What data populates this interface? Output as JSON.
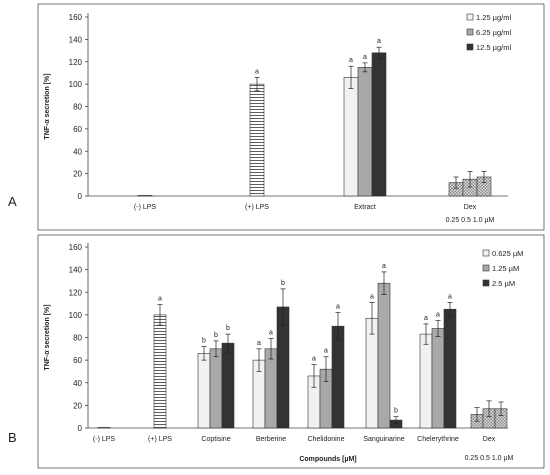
{
  "chart_data": [
    {
      "type": "bar",
      "panel_label": "A",
      "ylabel": "TNF-α secretion [%]",
      "xlabel": "",
      "ylim": [
        0,
        160
      ],
      "yticks": [
        0,
        20,
        40,
        60,
        80,
        100,
        120,
        140,
        160
      ],
      "categories": [
        "(-) LPS",
        "(+) LPS",
        "Extract",
        "Dex"
      ],
      "sub_labels": {
        "Dex": "0.25  0.5  1.0 µM"
      },
      "legend": {
        "position": "top-right",
        "entries": [
          "1.25 µg/ml",
          "6.25 µg/ml",
          "12.5 µg/ml"
        ]
      },
      "groups": [
        {
          "category": "(-) LPS",
          "bars": [
            {
              "style": "control",
              "value": 0.5,
              "error": 0,
              "label": ""
            }
          ]
        },
        {
          "category": "(+) LPS",
          "bars": [
            {
              "style": "hatch",
              "value": 100,
              "error": 6,
              "label": "a"
            }
          ]
        },
        {
          "category": "Extract",
          "bars": [
            {
              "style": "light",
              "value": 106,
              "error": 10,
              "label": "a"
            },
            {
              "style": "mid",
              "value": 115,
              "error": 4,
              "label": "a"
            },
            {
              "style": "dark",
              "value": 128,
              "error": 5,
              "label": "a"
            }
          ]
        },
        {
          "category": "Dex",
          "bars": [
            {
              "style": "dots",
              "value": 12,
              "error": 5,
              "label": ""
            },
            {
              "style": "dots",
              "value": 15,
              "error": 7,
              "label": ""
            },
            {
              "style": "dots",
              "value": 17,
              "error": 5,
              "label": ""
            }
          ]
        }
      ]
    },
    {
      "type": "bar",
      "panel_label": "B",
      "ylabel": "TNF-α secretion [%]",
      "xlabel": "Compounds [µM]",
      "ylim": [
        0,
        160
      ],
      "yticks": [
        0,
        20,
        40,
        60,
        80,
        100,
        120,
        140,
        160
      ],
      "categories": [
        "(-) LPS",
        "(+) LPS",
        "Coptisine",
        "Berberine",
        "Chelidonine",
        "Sanguinarine",
        "Chelerythrine",
        "Dex"
      ],
      "sub_labels": {
        "Dex": "0.25  0.5  1.0 µM"
      },
      "legend": {
        "position": "top-right",
        "entries": [
          "0.625 µM",
          "1.25 µM",
          "2.5 µM"
        ]
      },
      "groups": [
        {
          "category": "(-) LPS",
          "bars": [
            {
              "style": "control",
              "value": 0.5,
              "error": 0,
              "label": ""
            }
          ]
        },
        {
          "category": "(+) LPS",
          "bars": [
            {
              "style": "hatch",
              "value": 100,
              "error": 9,
              "label": "a"
            }
          ]
        },
        {
          "category": "Coptisine",
          "bars": [
            {
              "style": "light",
              "value": 66,
              "error": 6,
              "label": "b"
            },
            {
              "style": "mid",
              "value": 70,
              "error": 7,
              "label": "b"
            },
            {
              "style": "dark",
              "value": 75,
              "error": 8,
              "label": "b"
            }
          ]
        },
        {
          "category": "Berberine",
          "bars": [
            {
              "style": "light",
              "value": 60,
              "error": 10,
              "label": "a"
            },
            {
              "style": "mid",
              "value": 70,
              "error": 9,
              "label": "a"
            },
            {
              "style": "dark",
              "value": 107,
              "error": 16,
              "label": "b"
            }
          ]
        },
        {
          "category": "Chelidonine",
          "bars": [
            {
              "style": "light",
              "value": 46,
              "error": 10,
              "label": "a"
            },
            {
              "style": "mid",
              "value": 52,
              "error": 11,
              "label": "a"
            },
            {
              "style": "dark",
              "value": 90,
              "error": 12,
              "label": "a"
            }
          ]
        },
        {
          "category": "Sanguinarine",
          "bars": [
            {
              "style": "light",
              "value": 97,
              "error": 14,
              "label": "a"
            },
            {
              "style": "mid",
              "value": 128,
              "error": 10,
              "label": "a"
            },
            {
              "style": "dark",
              "value": 7,
              "error": 3,
              "label": "b"
            }
          ]
        },
        {
          "category": "Chelerythrine",
          "bars": [
            {
              "style": "light",
              "value": 83,
              "error": 9,
              "label": "a"
            },
            {
              "style": "mid",
              "value": 88,
              "error": 7,
              "label": "a"
            },
            {
              "style": "dark",
              "value": 105,
              "error": 6,
              "label": "a"
            }
          ]
        },
        {
          "category": "Dex",
          "bars": [
            {
              "style": "dots",
              "value": 12,
              "error": 6,
              "label": ""
            },
            {
              "style": "dots",
              "value": 17,
              "error": 7,
              "label": ""
            },
            {
              "style": "dots",
              "value": 17,
              "error": 6,
              "label": ""
            }
          ]
        }
      ]
    }
  ]
}
